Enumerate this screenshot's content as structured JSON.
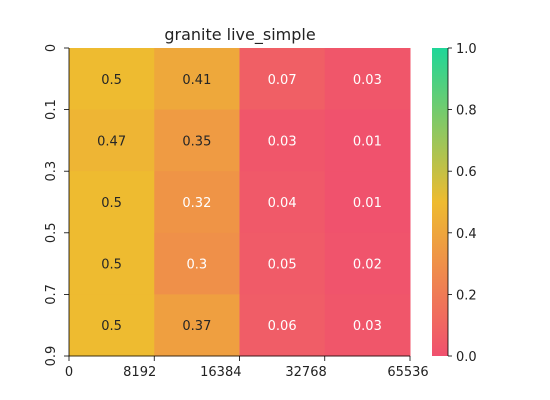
{
  "chart_data": {
    "type": "heatmap",
    "title": "granite live_simple",
    "x_ticks": [
      "0",
      "8192",
      "16384",
      "32768",
      "65536"
    ],
    "y_ticks": [
      "0",
      "0.1",
      "0.3",
      "0.5",
      "0.7",
      "0.9"
    ],
    "values": [
      [
        0.5,
        0.41,
        0.07,
        0.03
      ],
      [
        0.47,
        0.35,
        0.03,
        0.01
      ],
      [
        0.5,
        0.32,
        0.04,
        0.01
      ],
      [
        0.5,
        0.3,
        0.05,
        0.02
      ],
      [
        0.5,
        0.37,
        0.06,
        0.03
      ]
    ],
    "value_labels": [
      [
        "0.5",
        "0.41",
        "0.07",
        "0.03"
      ],
      [
        "0.47",
        "0.35",
        "0.03",
        "0.01"
      ],
      [
        "0.5",
        "0.32",
        "0.04",
        "0.01"
      ],
      [
        "0.5",
        "0.3",
        "0.05",
        "0.02"
      ],
      [
        "0.5",
        "0.37",
        "0.06",
        "0.03"
      ]
    ],
    "vmin": 0.0,
    "vmax": 1.0,
    "colormap": [
      [
        0.0,
        "#f0506e"
      ],
      [
        0.5,
        "#eebb30"
      ],
      [
        1.0,
        "#1fd698"
      ]
    ],
    "colorbar_ticks": [
      "0.0",
      "0.2",
      "0.4",
      "0.6",
      "0.8",
      "1.0"
    ],
    "colorbar_values": [
      0.0,
      0.2,
      0.4,
      0.6,
      0.8,
      1.0
    ]
  }
}
